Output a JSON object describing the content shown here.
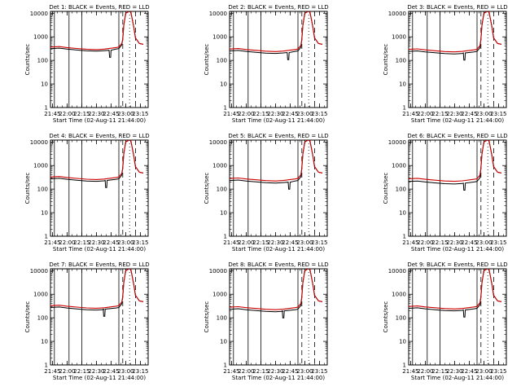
{
  "chart_data": [
    {
      "type": "line",
      "title": "Det 1: BLACK = Events, RED = LLD",
      "xlabel": "Start Time (02-Aug-11 21:44:00)",
      "ylabel": "Counts/sec",
      "x_tick_labels": [
        "21:45",
        "22:00",
        "22:15",
        "22:30",
        "22:45",
        "23:00",
        "23:15"
      ],
      "y_tick_labels": [
        "1",
        "10",
        "100",
        "1000",
        "10000"
      ],
      "ylim": [
        1,
        12000
      ],
      "yscale": "log",
      "dip_time": "22:44",
      "events_level": 300,
      "lld_level": 350,
      "flare_peak": 10000,
      "series": []
    },
    {
      "type": "line",
      "title": "Det 2: BLACK = Events, RED = LLD",
      "xlabel": "Start Time (02-Aug-11 21:44:00)",
      "ylabel": "Counts/sec",
      "x_tick_labels": [
        "21:45",
        "22:00",
        "22:15",
        "22:30",
        "22:45",
        "23:00",
        "23:15"
      ],
      "y_tick_labels": [
        "1",
        "10",
        "100",
        "1000",
        "10000"
      ],
      "ylim": [
        1,
        12000
      ],
      "yscale": "log",
      "dip_time": "22:43",
      "events_level": 240,
      "lld_level": 290,
      "flare_peak": 10000,
      "series": []
    },
    {
      "type": "line",
      "title": "Det 3: BLACK = Events, RED = LLD",
      "xlabel": "Start Time (02-Aug-11 21:44:00)",
      "ylabel": "Counts/sec",
      "x_tick_labels": [
        "21:45",
        "22:00",
        "22:15",
        "22:30",
        "22:45",
        "23:00",
        "23:15"
      ],
      "y_tick_labels": [
        "1",
        "10",
        "100",
        "1000",
        "10000"
      ],
      "ylim": [
        1,
        12000
      ],
      "yscale": "log",
      "dip_time": "22:40",
      "events_level": 230,
      "lld_level": 280,
      "flare_peak": 10000,
      "series": []
    },
    {
      "type": "line",
      "title": "Det 4: BLACK = Events, RED = LLD",
      "xlabel": "Start Time (02-Aug-11 21:44:00)",
      "ylabel": "Counts/sec",
      "x_tick_labels": [
        "21:45",
        "22:00",
        "22:15",
        "22:30",
        "22:45",
        "23:00",
        "23:15"
      ],
      "y_tick_labels": [
        "1",
        "10",
        "100",
        "1000",
        "10000"
      ],
      "ylim": [
        1,
        12000
      ],
      "yscale": "log",
      "dip_time": "22:40",
      "events_level": 260,
      "lld_level": 310,
      "flare_peak": 10000,
      "series": []
    },
    {
      "type": "line",
      "title": "Det 5: BLACK = Events, RED = LLD",
      "xlabel": "Start Time (02-Aug-11 21:44:00)",
      "ylabel": "Counts/sec",
      "x_tick_labels": [
        "21:45",
        "22:00",
        "22:15",
        "22:30",
        "22:45",
        "23:00",
        "23:15"
      ],
      "y_tick_labels": [
        "1",
        "10",
        "100",
        "1000",
        "10000"
      ],
      "ylim": [
        1,
        12000
      ],
      "yscale": "log",
      "dip_time": "22:44",
      "events_level": 220,
      "lld_level": 270,
      "flare_peak": 10000,
      "series": []
    },
    {
      "type": "line",
      "title": "Det 6: BLACK = Events, RED = LLD",
      "xlabel": "Start Time (02-Aug-11 21:44:00)",
      "ylabel": "Counts/sec",
      "x_tick_labels": [
        "21:45",
        "22:00",
        "22:15",
        "22:30",
        "22:45",
        "23:00",
        "23:15"
      ],
      "y_tick_labels": [
        "1",
        "10",
        "100",
        "1000",
        "10000"
      ],
      "ylim": [
        1,
        12000
      ],
      "yscale": "log",
      "dip_time": "22:40",
      "events_level": 200,
      "lld_level": 260,
      "flare_peak": 10000,
      "series": []
    },
    {
      "type": "line",
      "title": "Det 7: BLACK = Events, RED = LLD",
      "xlabel": "Start Time (02-Aug-11 21:44:00)",
      "ylabel": "Counts/sec",
      "x_tick_labels": [
        "21:45",
        "22:00",
        "22:15",
        "22:30",
        "22:45",
        "23:00",
        "23:15"
      ],
      "y_tick_labels": [
        "1",
        "10",
        "100",
        "1000",
        "10000"
      ],
      "ylim": [
        1,
        12000
      ],
      "yscale": "log",
      "dip_time": "22:38",
      "events_level": 260,
      "lld_level": 310,
      "flare_peak": 10000,
      "series": []
    },
    {
      "type": "line",
      "title": "Det 8: BLACK = Events, RED = LLD",
      "xlabel": "Start Time (02-Aug-11 21:44:00)",
      "ylabel": "Counts/sec",
      "x_tick_labels": [
        "21:45",
        "22:00",
        "22:15",
        "22:30",
        "22:45",
        "23:00",
        "23:15"
      ],
      "y_tick_labels": [
        "1",
        "10",
        "100",
        "1000",
        "10000"
      ],
      "ylim": [
        1,
        12000
      ],
      "yscale": "log",
      "dip_time": "22:38",
      "events_level": 220,
      "lld_level": 270,
      "flare_peak": 10000,
      "series": []
    },
    {
      "type": "line",
      "title": "Det 9: BLACK = Events, RED = LLD",
      "xlabel": "Start Time (02-Aug-11 21:44:00)",
      "ylabel": "Counts/sec",
      "x_tick_labels": [
        "21:45",
        "22:00",
        "22:15",
        "22:30",
        "22:45",
        "23:00",
        "23:15"
      ],
      "y_tick_labels": [
        "1",
        "10",
        "100",
        "1000",
        "10000"
      ],
      "ylim": [
        1,
        12000
      ],
      "yscale": "log",
      "dip_time": "22:40",
      "events_level": 240,
      "lld_level": 290,
      "flare_peak": 10000,
      "series": []
    }
  ],
  "colors": {
    "events": "#000000",
    "lld": "#cc0000",
    "axes": "#000000",
    "background": "#ffffff"
  }
}
